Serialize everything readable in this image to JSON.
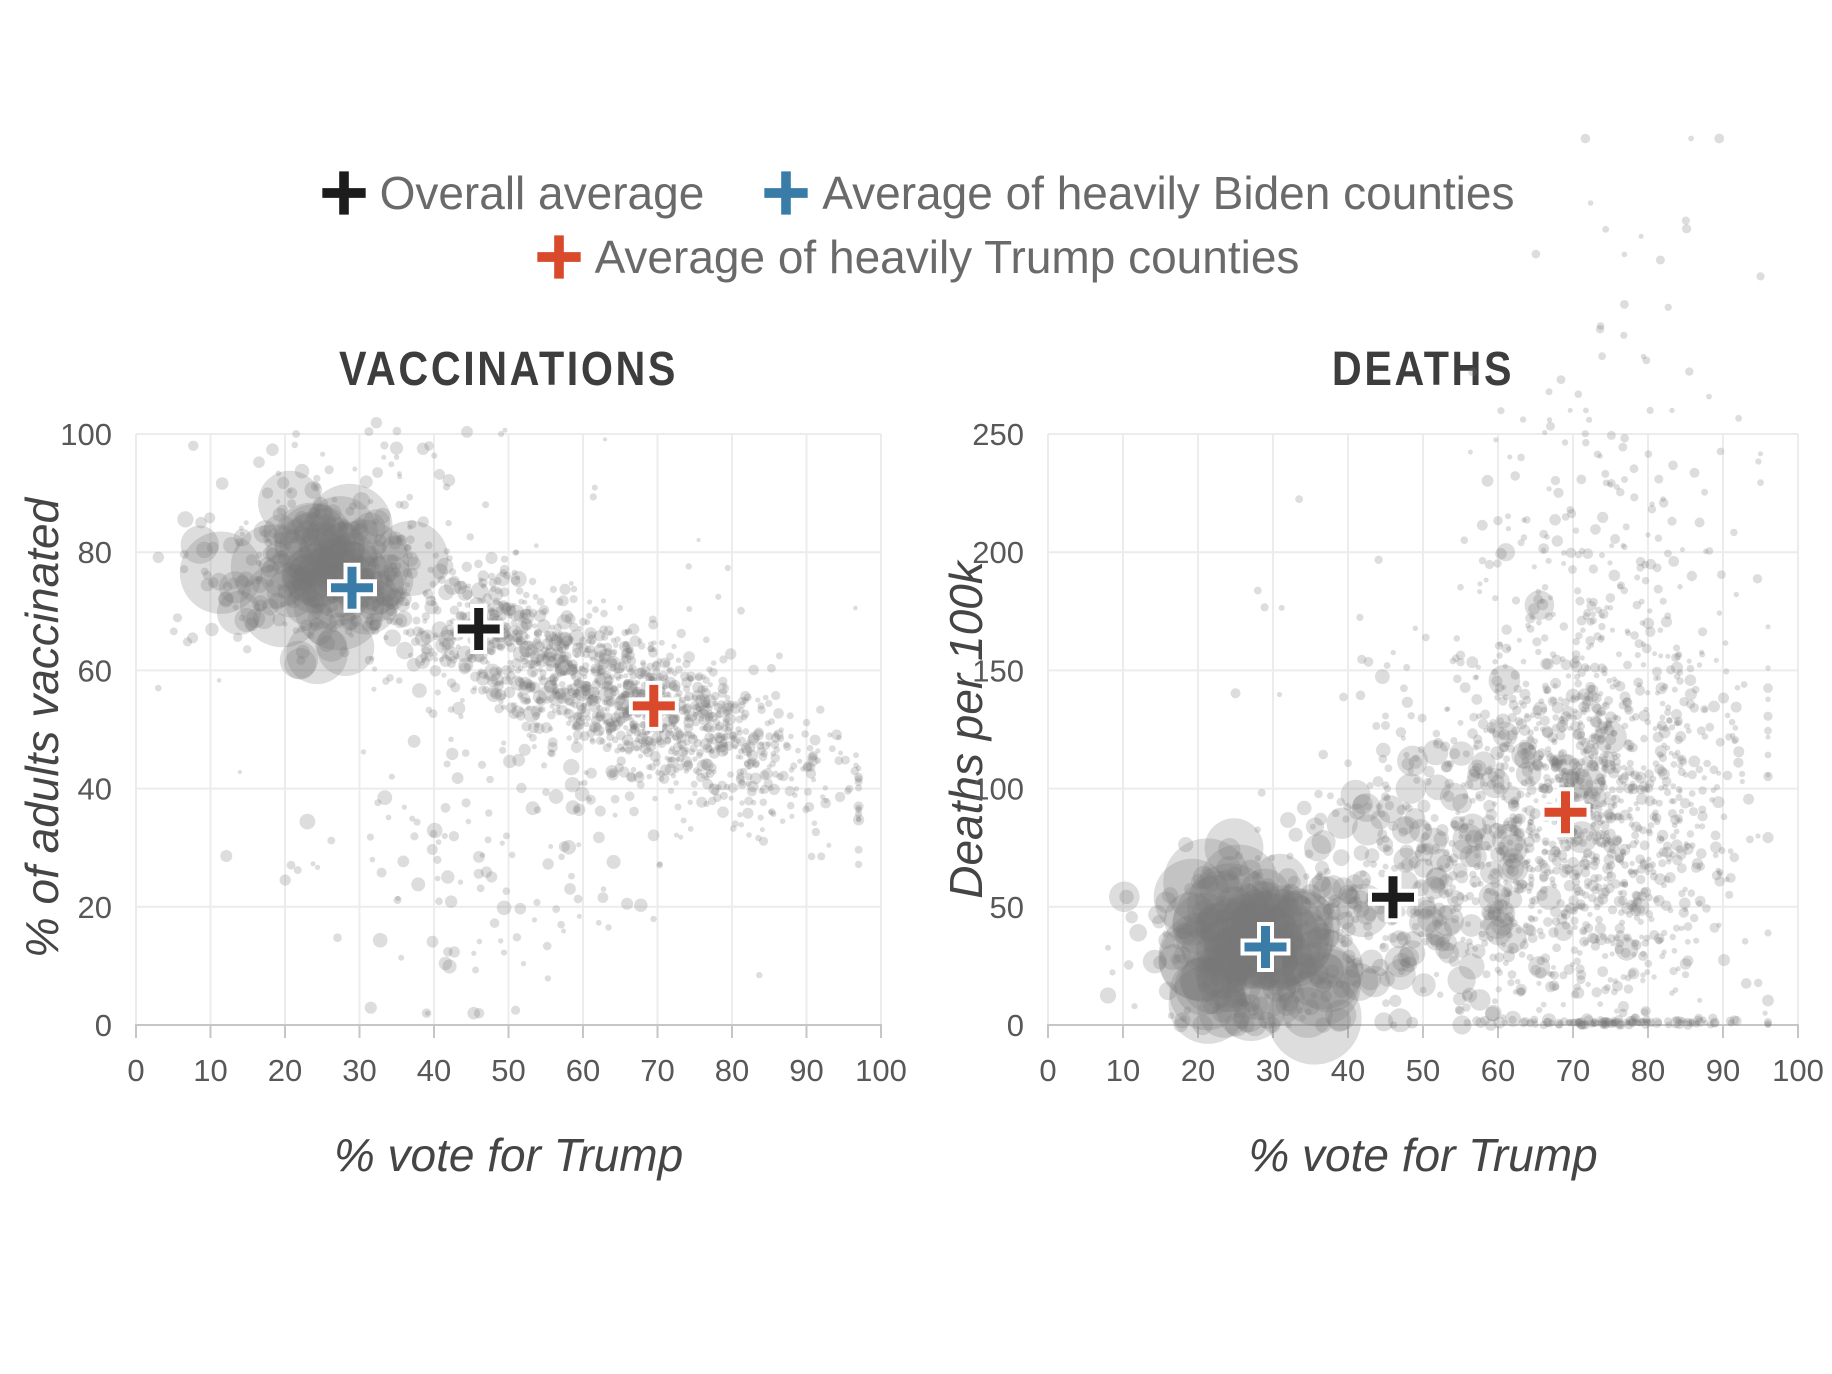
{
  "page": {
    "background": "#ffffff"
  },
  "legend": {
    "text_color": "#6a6a6a",
    "items": [
      {
        "series": "overall",
        "label": "Overall average",
        "color": "#1c1c1c"
      },
      {
        "series": "biden",
        "label": "Average of heavily Biden counties",
        "color": "#3a7ca8"
      },
      {
        "series": "trump",
        "label": "Average of heavily Trump counties",
        "color": "#d84a2b"
      }
    ]
  },
  "series_colors": {
    "overall": "#1c1c1c",
    "biden": "#3a7ca8",
    "trump": "#d84a2b"
  },
  "style": {
    "grid_color": "#ececec",
    "axis_color": "#c6c6c6",
    "tick_label_color": "#58585a",
    "point_color": "#787878",
    "point_opacity": 0.25,
    "marker_outline": "#ffffff"
  },
  "chart_data": [
    {
      "type": "scatter",
      "title": "VACCINATIONS",
      "xlabel": "% vote for Trump",
      "ylabel": "% of adults vaccinated",
      "xlim": [
        0,
        100
      ],
      "ylim": [
        0,
        100
      ],
      "x_ticks": [
        0,
        10,
        20,
        30,
        40,
        50,
        60,
        70,
        80,
        90,
        100
      ],
      "y_ticks": [
        0,
        20,
        40,
        60,
        80,
        100
      ],
      "grid": true,
      "markers": [
        {
          "series": "biden",
          "x": 29,
          "y": 74
        },
        {
          "series": "overall",
          "x": 46,
          "y": 67
        },
        {
          "series": "trump",
          "x": 69.5,
          "y": 54
        }
      ],
      "cloud": {
        "seed": 101,
        "clusters": [
          {
            "n": 950,
            "x": {
              "m": 69,
              "s": 13,
              "lo": 28,
              "hi": 97
            },
            "y": {
              "b": 88,
              "k": -0.5,
              "s": 6,
              "lo": 20,
              "hi": 103
            },
            "r": {
              "lo": 2.5,
              "hi": 6,
              "p": 1.5
            }
          },
          {
            "n": 420,
            "x": {
              "m": 48,
              "s": 11,
              "lo": 18,
              "hi": 78
            },
            "y": {
              "b": 89,
              "k": -0.5,
              "s": 7,
              "lo": 25,
              "hi": 103
            },
            "r": {
              "lo": 2.5,
              "hi": 9,
              "p": 2
            }
          },
          {
            "n": 110,
            "x": {
              "m": 25,
              "s": 6,
              "lo": 8,
              "hi": 40
            },
            "y": {
              "b": 76,
              "k": 0,
              "s": 6,
              "lo": 60,
              "hi": 95
            },
            "r": {
              "lo": 6,
              "hi": 46,
              "p": 2.6
            }
          },
          {
            "n": 160,
            "x": {
              "m": 22,
              "s": 8,
              "lo": 3,
              "hi": 45
            },
            "y": {
              "b": 78,
              "k": 0,
              "s": 8,
              "lo": 55,
              "hi": 98
            },
            "r": {
              "lo": 2.5,
              "hi": 9,
              "p": 1.8
            }
          },
          {
            "n": 120,
            "x": {
              "m": 48,
              "s": 14,
              "lo": 12,
              "hi": 85
            },
            "y": {
              "b": 27,
              "k": 0,
              "s": 12,
              "lo": 2,
              "hi": 48
            },
            "r": {
              "lo": 2.5,
              "hi": 8,
              "p": 1.8
            }
          },
          {
            "n": 30,
            "x": {
              "m": 33,
              "s": 9,
              "lo": 12,
              "hi": 55
            },
            "y": {
              "b": 94,
              "k": 0,
              "s": 4,
              "lo": 88,
              "hi": 104
            },
            "r": {
              "lo": 2.5,
              "hi": 7,
              "p": 1.8
            }
          },
          {
            "n": 70,
            "x": {
              "m": 55,
              "s": 22,
              "lo": 3,
              "hi": 97
            },
            "y": {
              "b": 58,
              "k": 0,
              "s": 20,
              "lo": 5,
              "hi": 100
            },
            "r": {
              "lo": 2,
              "hi": 4,
              "p": 1
            }
          }
        ]
      }
    },
    {
      "type": "scatter",
      "title": "DEATHS",
      "xlabel": "% vote for Trump",
      "ylabel": "Deaths per 100k",
      "xlim": [
        0,
        100
      ],
      "ylim": [
        0,
        250
      ],
      "x_ticks": [
        0,
        10,
        20,
        30,
        40,
        50,
        60,
        70,
        80,
        90,
        100
      ],
      "y_ticks": [
        0,
        50,
        100,
        150,
        200,
        250
      ],
      "grid": true,
      "markers": [
        {
          "series": "biden",
          "x": 29,
          "y": 33
        },
        {
          "series": "overall",
          "x": 46,
          "y": 54
        },
        {
          "series": "trump",
          "x": 69,
          "y": 90
        }
      ],
      "cloud": {
        "seed": 202,
        "clusters": [
          {
            "n": 120,
            "x": {
              "m": 27,
              "s": 6,
              "lo": 10,
              "hi": 42
            },
            "y": {
              "b": 30,
              "k": 0,
              "s": 16,
              "lo": 2,
              "hi": 75
            },
            "r": {
              "lo": 8,
              "hi": 52,
              "p": 2.4
            }
          },
          {
            "n": 170,
            "x": {
              "m": 28,
              "s": 8,
              "lo": 8,
              "hi": 45
            },
            "y": {
              "b": 35,
              "k": 0,
              "s": 20,
              "lo": 0,
              "hi": 90
            },
            "r": {
              "lo": 3,
              "hi": 12,
              "p": 2
            }
          },
          {
            "n": 260,
            "x": {
              "m": 47,
              "s": 8,
              "lo": 32,
              "hi": 62
            },
            "y": {
              "b": 62,
              "k": 0,
              "s": 30,
              "lo": 0,
              "hi": 170
            },
            "r": {
              "lo": 3.5,
              "hi": 16,
              "p": 2.2
            }
          },
          {
            "n": 1400,
            "x": {
              "m": 72,
              "s": 10,
              "lo": 45,
              "hi": 96
            },
            "y": {
              "b": 95,
              "k": 0,
              "s": 50,
              "lo": 1,
              "hi": 255
            },
            "r": {
              "lo": 2.5,
              "hi": 6,
              "p": 1.5
            }
          },
          {
            "n": 60,
            "x": {
              "m": 60,
              "s": 9,
              "lo": 40,
              "hi": 80
            },
            "y": {
              "b": 80,
              "k": 0,
              "s": 40,
              "lo": 2,
              "hi": 200
            },
            "r": {
              "lo": 7,
              "hi": 18,
              "p": 2
            }
          },
          {
            "n": 95,
            "x": {
              "m": 78,
              "s": 9,
              "lo": 55,
              "hi": 96
            },
            "y": {
              "b": 1,
              "k": 0,
              "s": 1,
              "lo": 0,
              "hi": 3
            },
            "r": {
              "lo": 2.5,
              "hi": 5,
              "p": 1
            }
          },
          {
            "n": 60,
            "x": {
              "m": 76,
              "s": 10,
              "lo": 50,
              "hi": 95
            },
            "y": {
              "b": 225,
              "k": 0,
              "s": 22,
              "lo": 180,
              "hi": 260
            },
            "r": {
              "lo": 2.5,
              "hi": 5,
              "p": 1
            }
          },
          {
            "n": 28,
            "x": {
              "m": 78,
              "s": 9,
              "lo": 55,
              "hi": 95
            },
            "y": {
              "b": 300,
              "k": 0,
              "s": 40,
              "lo": 256,
              "hi": 375
            },
            "r": {
              "lo": 2.5,
              "hi": 5,
              "p": 1
            }
          },
          {
            "n": 25,
            "x": {
              "m": 38,
              "s": 9,
              "lo": 25,
              "hi": 55
            },
            "y": {
              "b": 150,
              "k": 0,
              "s": 35,
              "lo": 90,
              "hi": 230
            },
            "r": {
              "lo": 2.5,
              "hi": 5,
              "p": 1
            }
          }
        ]
      }
    }
  ]
}
